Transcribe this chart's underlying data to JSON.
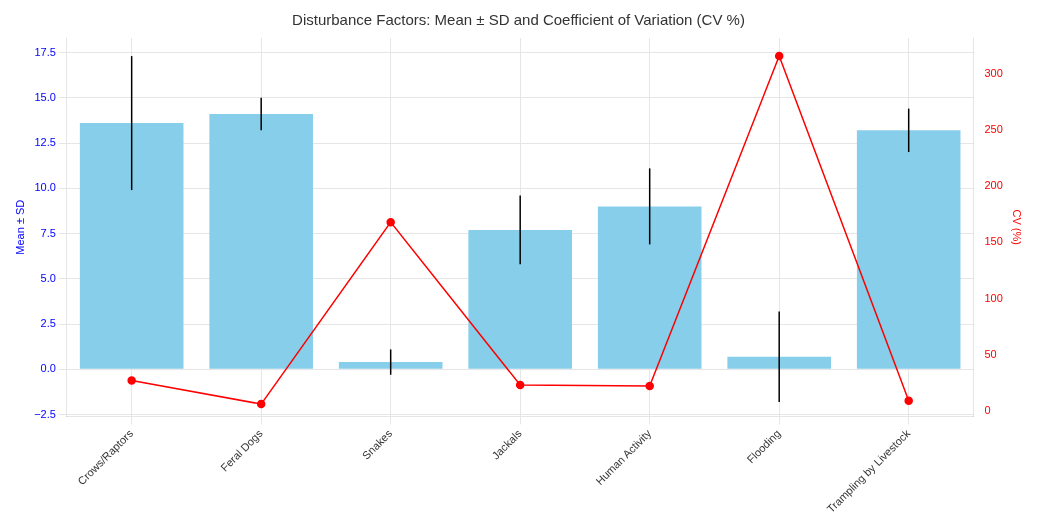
{
  "chart_data": {
    "type": "bar",
    "title": "Disturbance Factors: Mean ± SD and Coefficient of Variation (CV %)",
    "ylabel": "Mean ± SD",
    "y2label": "CV (%)",
    "categories": [
      "Crows/Raptors",
      "Feral Dogs",
      "Snakes",
      "Jackals",
      "Human Activity",
      "Flooding",
      "Trampling by Livestock"
    ],
    "series": [
      {
        "color": "#87ceeb",
        "values": [
          13.6,
          14.1,
          0.4,
          7.7,
          9.0,
          0.7,
          13.2
        ],
        "errors": [
          3.7,
          0.9,
          0.7,
          1.9,
          2.1,
          2.5,
          1.2
        ]
      },
      {
        "type": "line",
        "axis": "y2",
        "color": "#ff0000",
        "marker": "circle",
        "values": [
          27,
          6,
          168,
          23,
          22,
          316,
          9
        ]
      }
    ],
    "ylim": [
      -2.6,
      18.3
    ],
    "yticks": [
      {
        "value": -2.5,
        "label": "−2.5"
      },
      {
        "value": 0,
        "label": "0.0"
      },
      {
        "value": 2.5,
        "label": "2.5"
      },
      {
        "value": 5,
        "label": "5.0"
      },
      {
        "value": 7.5,
        "label": "7.5"
      },
      {
        "value": 10,
        "label": "10.0"
      },
      {
        "value": 12.5,
        "label": "12.5"
      },
      {
        "value": 15,
        "label": "15.0"
      },
      {
        "value": 17.5,
        "label": "17.5"
      }
    ],
    "y2lim": [
      -5,
      332
    ],
    "y2ticks": [
      0,
      50,
      100,
      150,
      200,
      250,
      300
    ],
    "grid": true,
    "legend": false
  }
}
